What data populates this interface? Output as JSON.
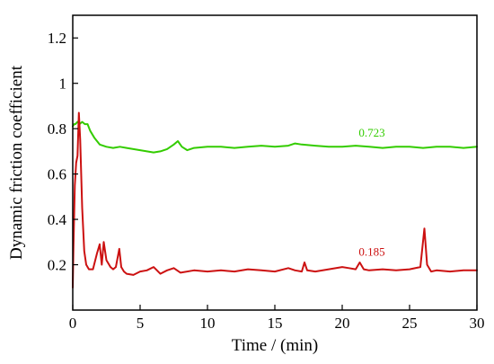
{
  "chart_data": {
    "type": "line",
    "xlabel": "Time / (min)",
    "ylabel": "Dynamic friction coefficient",
    "xlim": [
      0,
      30
    ],
    "ylim": [
      0.0,
      1.3
    ],
    "xticks": [
      0,
      5,
      10,
      15,
      20,
      25,
      30
    ],
    "xtick_labels": [
      "0",
      "5",
      "10",
      "15",
      "20",
      "25",
      "30"
    ],
    "yticks": [
      0.2,
      0.4,
      0.6,
      0.8,
      1.0,
      1.2
    ],
    "ytick_labels": [
      "0.2",
      "0.4",
      "0.6",
      "0.8",
      "1",
      "1.2"
    ],
    "grid": false,
    "series": [
      {
        "color": "#33cc00",
        "x": [
          0,
          0.1,
          0.2,
          0.35,
          0.5,
          0.7,
          0.9,
          1.1,
          1.3,
          1.6,
          2.0,
          2.5,
          3.0,
          3.5,
          4.0,
          4.5,
          5.0,
          5.5,
          6.0,
          6.5,
          7.0,
          7.5,
          7.8,
          8.1,
          8.5,
          9.0,
          10.0,
          11.0,
          12.0,
          13.0,
          14.0,
          15.0,
          16.0,
          16.5,
          17.0,
          18.0,
          19.0,
          20.0,
          21.0,
          22.0,
          23.0,
          24.0,
          25.0,
          26.0,
          27.0,
          28.0,
          29.0,
          30.0
        ],
        "y": [
          0.81,
          0.82,
          0.82,
          0.83,
          0.82,
          0.83,
          0.82,
          0.82,
          0.79,
          0.76,
          0.73,
          0.72,
          0.715,
          0.72,
          0.715,
          0.71,
          0.705,
          0.7,
          0.695,
          0.7,
          0.71,
          0.73,
          0.745,
          0.72,
          0.705,
          0.715,
          0.72,
          0.72,
          0.715,
          0.72,
          0.725,
          0.72,
          0.725,
          0.735,
          0.73,
          0.725,
          0.72,
          0.72,
          0.725,
          0.72,
          0.715,
          0.72,
          0.72,
          0.715,
          0.72,
          0.72,
          0.715,
          0.72
        ]
      },
      {
        "color": "#cc1111",
        "x": [
          0,
          0.05,
          0.15,
          0.25,
          0.35,
          0.45,
          0.55,
          0.7,
          0.85,
          1.0,
          1.2,
          1.5,
          1.8,
          2.0,
          2.15,
          2.3,
          2.5,
          2.8,
          3.0,
          3.2,
          3.45,
          3.6,
          3.8,
          4.0,
          4.5,
          5.0,
          5.5,
          6.0,
          6.5,
          7.0,
          7.5,
          8.0,
          9.0,
          10.0,
          11.0,
          12.0,
          13.0,
          14.0,
          15.0,
          16.0,
          16.5,
          17.0,
          17.2,
          17.4,
          18.0,
          19.0,
          20.0,
          20.5,
          21.0,
          21.3,
          21.6,
          22.0,
          23.0,
          24.0,
          25.0,
          25.8,
          26.1,
          26.3,
          26.6,
          27.0,
          28.0,
          29.0,
          30.0
        ],
        "y": [
          0.1,
          0.28,
          0.55,
          0.65,
          0.68,
          0.87,
          0.75,
          0.45,
          0.26,
          0.2,
          0.18,
          0.18,
          0.25,
          0.29,
          0.2,
          0.3,
          0.22,
          0.19,
          0.18,
          0.19,
          0.27,
          0.19,
          0.17,
          0.16,
          0.155,
          0.17,
          0.175,
          0.19,
          0.16,
          0.175,
          0.185,
          0.165,
          0.175,
          0.17,
          0.175,
          0.17,
          0.18,
          0.175,
          0.17,
          0.185,
          0.175,
          0.17,
          0.21,
          0.175,
          0.17,
          0.18,
          0.19,
          0.185,
          0.18,
          0.21,
          0.18,
          0.175,
          0.18,
          0.175,
          0.18,
          0.19,
          0.36,
          0.2,
          0.17,
          0.175,
          0.17,
          0.175,
          0.175
        ]
      }
    ],
    "annotations": [
      {
        "text": "0.723",
        "x": 22.2,
        "y": 0.765,
        "color": "#33cc00"
      },
      {
        "text": "0.185",
        "x": 22.2,
        "y": 0.24,
        "color": "#cc1111"
      }
    ]
  }
}
